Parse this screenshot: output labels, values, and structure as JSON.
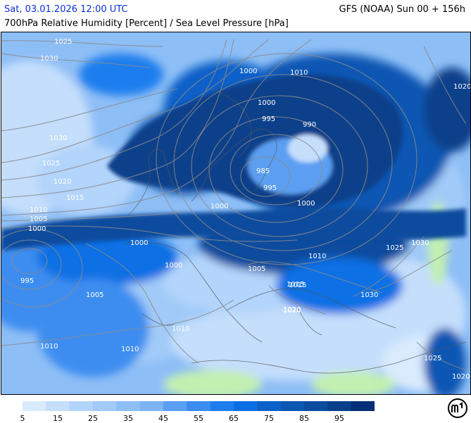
{
  "header": {
    "date": "Sat, 03.01.2026 12:00 UTC",
    "model": "GFS (NOAA) Sun 00 + 156h",
    "parameter": "700hPa Relative Humidity [Percent] / Sea Level Pressure [hPa]"
  },
  "legend": {
    "colors": [
      "#d9ebfd",
      "#c4defc",
      "#b3d4fb",
      "#a1caf8",
      "#8ebef6",
      "#7db3f3",
      "#5b9ff2",
      "#3c8df0",
      "#1f7eee",
      "#0b6fe4",
      "#0a61c8",
      "#0b57b3",
      "#0a4c9e",
      "#083f8a",
      "#042e76"
    ],
    "ticks": [
      "5",
      "15",
      "25",
      "35",
      "45",
      "55",
      "65",
      "75",
      "85",
      "95"
    ]
  },
  "isobars": [
    "1025",
    "1030",
    "1030",
    "1025",
    "1020",
    "1015",
    "1010",
    "1005",
    "1000",
    "995",
    "1000",
    "1000",
    "1005",
    "1010",
    "1010",
    "1010",
    "1015",
    "1020",
    "1000",
    "995",
    "990",
    "985",
    "995",
    "1000",
    "1000",
    "1005",
    "1010",
    "1015",
    "1020",
    "1025",
    "1030",
    "1025",
    "1020",
    "1030",
    "1020",
    "1010",
    "1000"
  ]
}
